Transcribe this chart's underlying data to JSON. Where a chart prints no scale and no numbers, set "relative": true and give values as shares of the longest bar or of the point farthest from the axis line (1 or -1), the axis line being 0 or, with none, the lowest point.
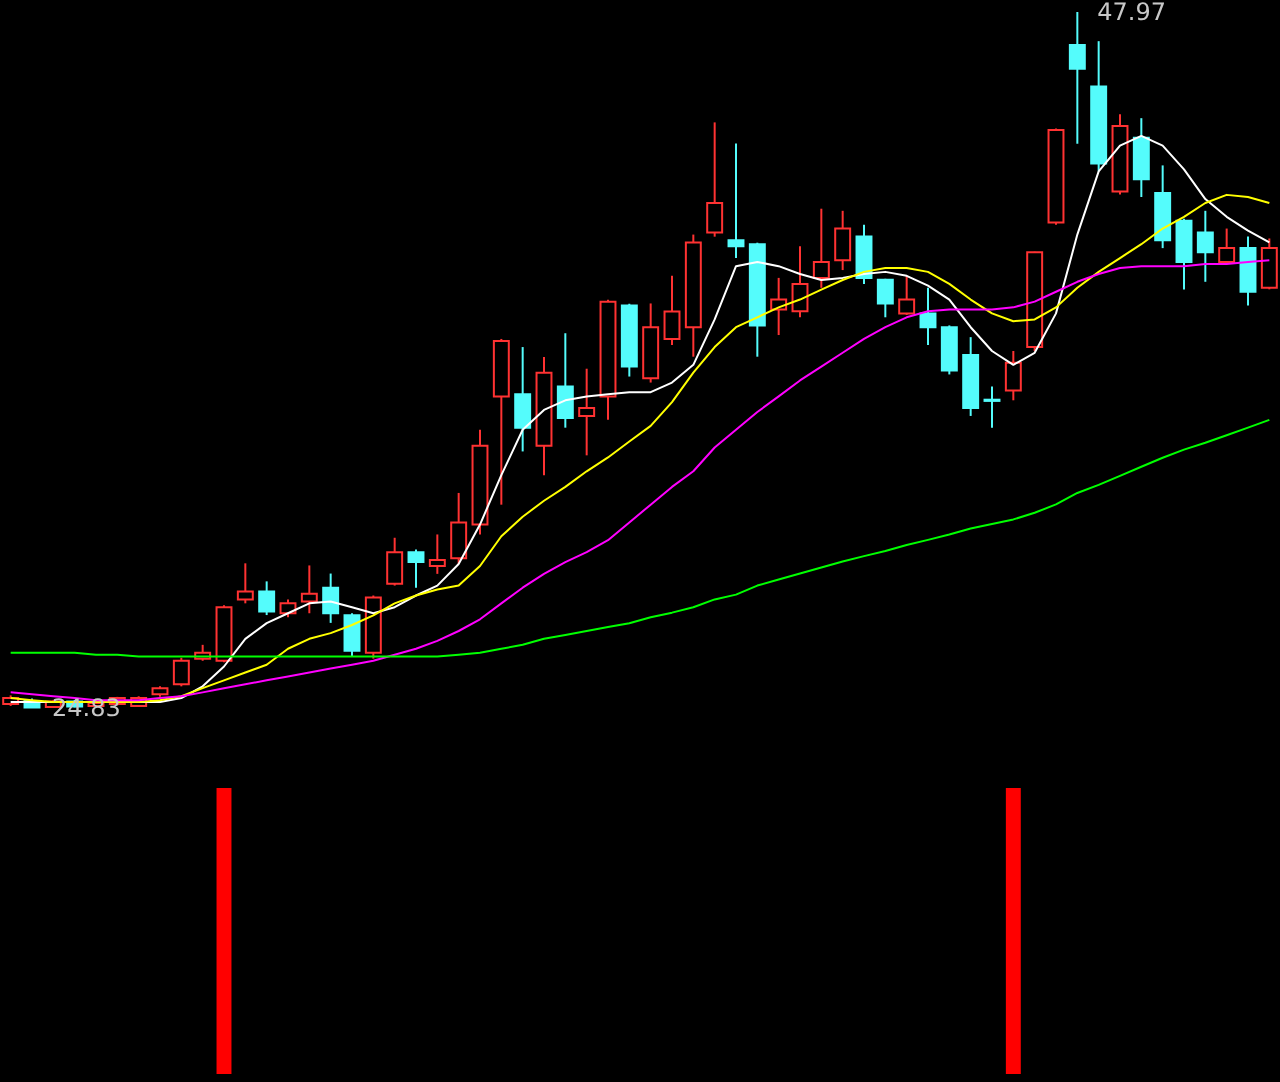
{
  "chart_data": [
    {
      "type": "candlestick",
      "categories": [
        null,
        null,
        null,
        null,
        null,
        null,
        null,
        null,
        null,
        null,
        null,
        null,
        null,
        null,
        null,
        null,
        null,
        null,
        null,
        null,
        null,
        null,
        null,
        null,
        null,
        null,
        null,
        null,
        null,
        null,
        null,
        null,
        null,
        null,
        null,
        null,
        null,
        null,
        null,
        null,
        null,
        null,
        null,
        null,
        null,
        null,
        null,
        null,
        null,
        null,
        null,
        null,
        null,
        null,
        null,
        null,
        null,
        null,
        null,
        null
      ],
      "ohlc": [
        [
          24.96,
          25.25,
          24.9,
          25.16
        ],
        [
          25.06,
          25.15,
          24.83,
          24.85
        ],
        [
          24.86,
          25.1,
          24.84,
          25.05
        ],
        [
          25.05,
          25.1,
          24.85,
          24.88
        ],
        [
          24.9,
          25.05,
          24.86,
          25.0
        ],
        [
          24.96,
          25.2,
          24.92,
          25.16
        ],
        [
          24.9,
          25.22,
          24.88,
          25.16
        ],
        [
          25.29,
          25.55,
          25.2,
          25.49
        ],
        [
          25.62,
          26.5,
          25.55,
          26.4
        ],
        [
          26.47,
          26.93,
          26.4,
          26.67
        ],
        [
          26.4,
          28.25,
          26.35,
          28.18
        ],
        [
          28.44,
          29.64,
          28.31,
          28.7
        ],
        [
          28.7,
          29.04,
          27.92,
          28.04
        ],
        [
          27.98,
          28.44,
          27.85,
          28.31
        ],
        [
          28.37,
          29.57,
          27.98,
          28.63
        ],
        [
          28.83,
          29.3,
          27.66,
          27.98
        ],
        [
          27.91,
          27.98,
          26.53,
          26.73
        ],
        [
          26.67,
          28.57,
          26.47,
          28.5
        ],
        [
          28.96,
          30.49,
          28.9,
          30.01
        ],
        [
          30.01,
          30.1,
          28.83,
          29.68
        ],
        [
          29.55,
          30.6,
          29.29,
          29.75
        ],
        [
          29.81,
          31.98,
          29.62,
          31.0
        ],
        [
          30.93,
          34.08,
          30.6,
          33.55
        ],
        [
          35.19,
          37.1,
          31.59,
          37.03
        ],
        [
          35.26,
          36.83,
          33.36,
          34.15
        ],
        [
          33.55,
          36.5,
          32.57,
          35.98
        ],
        [
          35.52,
          37.29,
          34.15,
          34.47
        ],
        [
          34.54,
          36.11,
          33.23,
          34.8
        ],
        [
          35.19,
          38.4,
          34.41,
          38.34
        ],
        [
          38.21,
          38.27,
          35.85,
          36.18
        ],
        [
          35.79,
          38.28,
          35.65,
          37.49
        ],
        [
          37.1,
          39.2,
          36.9,
          38.01
        ],
        [
          37.49,
          40.57,
          36.51,
          40.31
        ],
        [
          40.64,
          44.3,
          40.5,
          41.62
        ],
        [
          40.38,
          43.6,
          39.79,
          40.18
        ],
        [
          40.25,
          40.3,
          36.51,
          37.55
        ],
        [
          38.08,
          39.13,
          37.23,
          38.41
        ],
        [
          38.02,
          40.18,
          37.82,
          38.93
        ],
        [
          39.13,
          41.43,
          38.8,
          39.66
        ],
        [
          39.72,
          41.36,
          39.39,
          40.77
        ],
        [
          40.51,
          40.9,
          38.93,
          39.13
        ],
        [
          39.07,
          39.1,
          37.82,
          38.28
        ],
        [
          37.95,
          39.2,
          37.9,
          38.41
        ],
        [
          37.95,
          38.8,
          36.9,
          37.49
        ],
        [
          37.49,
          37.55,
          35.92,
          36.05
        ],
        [
          36.57,
          37.16,
          34.54,
          34.8
        ],
        [
          35.08,
          35.52,
          34.15,
          35.04
        ],
        [
          35.39,
          36.7,
          35.06,
          36.31
        ],
        [
          36.83,
          40.0,
          36.7,
          39.98
        ],
        [
          40.97,
          44.1,
          40.9,
          44.05
        ],
        [
          46.87,
          47.97,
          43.59,
          46.08
        ],
        [
          45.49,
          47.0,
          42.67,
          42.93
        ],
        [
          42.0,
          44.57,
          41.9,
          44.18
        ],
        [
          43.79,
          44.44,
          41.82,
          42.41
        ],
        [
          41.95,
          42.87,
          40.12,
          40.38
        ],
        [
          41.03,
          41.1,
          38.74,
          39.66
        ],
        [
          40.64,
          41.36,
          39.0,
          39.98
        ],
        [
          39.66,
          40.77,
          39.6,
          40.12
        ],
        [
          40.12,
          40.51,
          38.21,
          38.67
        ],
        [
          38.8,
          40.44,
          38.75,
          40.12
        ]
      ],
      "series": [
        {
          "type": "line",
          "color": "#ffffff",
          "values": [
            25.03,
            25.03,
            25.03,
            25.03,
            25.03,
            25.03,
            25.03,
            25.03,
            25.16,
            25.55,
            26.21,
            27.13,
            27.65,
            27.98,
            28.31,
            28.37,
            28.18,
            27.98,
            28.18,
            28.57,
            28.9,
            29.62,
            30.93,
            32.57,
            34.08,
            34.74,
            35.06,
            35.19,
            35.26,
            35.33,
            35.33,
            35.65,
            36.24,
            37.75,
            39.52,
            39.66,
            39.52,
            39.26,
            39.06,
            39.13,
            39.26,
            39.33,
            39.2,
            38.87,
            38.41,
            37.49,
            36.7,
            36.24,
            36.64,
            37.95,
            40.57,
            42.67,
            43.53,
            43.85,
            43.53,
            42.74,
            41.75,
            41.16,
            40.7,
            40.31
          ]
        },
        {
          "type": "line",
          "color": "#ffff00",
          "values": [
            25.16,
            25.09,
            25.03,
            25.03,
            25.03,
            25.03,
            25.03,
            25.09,
            25.22,
            25.49,
            25.75,
            26.01,
            26.27,
            26.8,
            27.13,
            27.32,
            27.59,
            27.91,
            28.31,
            28.57,
            28.77,
            28.9,
            29.55,
            30.54,
            31.19,
            31.72,
            32.18,
            32.7,
            33.16,
            33.69,
            34.21,
            35.0,
            35.98,
            36.83,
            37.49,
            37.82,
            38.15,
            38.41,
            38.74,
            39.06,
            39.33,
            39.46,
            39.46,
            39.33,
            38.93,
            38.41,
            37.95,
            37.69,
            37.75,
            38.15,
            38.8,
            39.33,
            39.79,
            40.25,
            40.77,
            41.16,
            41.62,
            41.89,
            41.82,
            41.62
          ]
        },
        {
          "type": "line",
          "color": "#ff00ff",
          "values": [
            25.35,
            25.29,
            25.22,
            25.16,
            25.09,
            25.09,
            25.09,
            25.16,
            25.22,
            25.35,
            25.49,
            25.62,
            25.75,
            25.88,
            26.01,
            26.14,
            26.27,
            26.4,
            26.6,
            26.8,
            27.06,
            27.39,
            27.78,
            28.31,
            28.83,
            29.29,
            29.68,
            30.01,
            30.41,
            31.0,
            31.59,
            32.18,
            32.7,
            33.49,
            34.08,
            34.67,
            35.19,
            35.72,
            36.18,
            36.64,
            37.1,
            37.49,
            37.82,
            38.02,
            38.08,
            38.08,
            38.08,
            38.15,
            38.34,
            38.67,
            39.0,
            39.26,
            39.46,
            39.52,
            39.52,
            39.52,
            39.59,
            39.59,
            39.66,
            39.72
          ]
        },
        {
          "type": "line",
          "color": "#00ff00",
          "values": [
            26.67,
            26.67,
            26.67,
            26.67,
            26.6,
            26.6,
            26.54,
            26.54,
            26.54,
            26.54,
            26.54,
            26.54,
            26.54,
            26.54,
            26.54,
            26.54,
            26.54,
            26.54,
            26.54,
            26.54,
            26.54,
            26.6,
            26.67,
            26.8,
            26.93,
            27.13,
            27.26,
            27.39,
            27.52,
            27.65,
            27.85,
            28.0,
            28.18,
            28.44,
            28.6,
            28.9,
            29.1,
            29.3,
            29.5,
            29.7,
            29.88,
            30.05,
            30.25,
            30.42,
            30.6,
            30.8,
            30.95,
            31.1,
            31.32,
            31.6,
            31.98,
            32.25,
            32.55,
            32.85,
            33.15,
            33.42,
            33.65,
            33.9,
            34.15,
            34.41
          ]
        }
      ],
      "annotations": [
        "47.97",
        "24.83"
      ]
    },
    {
      "type": "bar",
      "relative": true,
      "categories": [
        null,
        null,
        null,
        null,
        null,
        null,
        null,
        null,
        null,
        null,
        null,
        null,
        null,
        null,
        null,
        null,
        null,
        null,
        null,
        null,
        null,
        null,
        null,
        null,
        null,
        null,
        null,
        null,
        null,
        null,
        null,
        null,
        null,
        null,
        null,
        null,
        null,
        null,
        null,
        null,
        null,
        null,
        null,
        null,
        null,
        null,
        null,
        null,
        null,
        null,
        null,
        null,
        null,
        null,
        null,
        null,
        null,
        null,
        null,
        null
      ],
      "series": [
        {
          "color": "#ff0000",
          "values": [
            null,
            null,
            null,
            null,
            null,
            null,
            null,
            null,
            null,
            null,
            1,
            null,
            null,
            null,
            null,
            null,
            null,
            null,
            null,
            null,
            null,
            null,
            null,
            null,
            null,
            null,
            null,
            null,
            null,
            null,
            null,
            null,
            null,
            null,
            null,
            null,
            null,
            null,
            null,
            null,
            null,
            null,
            null,
            null,
            null,
            null,
            null,
            1,
            null,
            null,
            null,
            null,
            null,
            null,
            null,
            null,
            null,
            null,
            null,
            null
          ]
        }
      ]
    }
  ]
}
